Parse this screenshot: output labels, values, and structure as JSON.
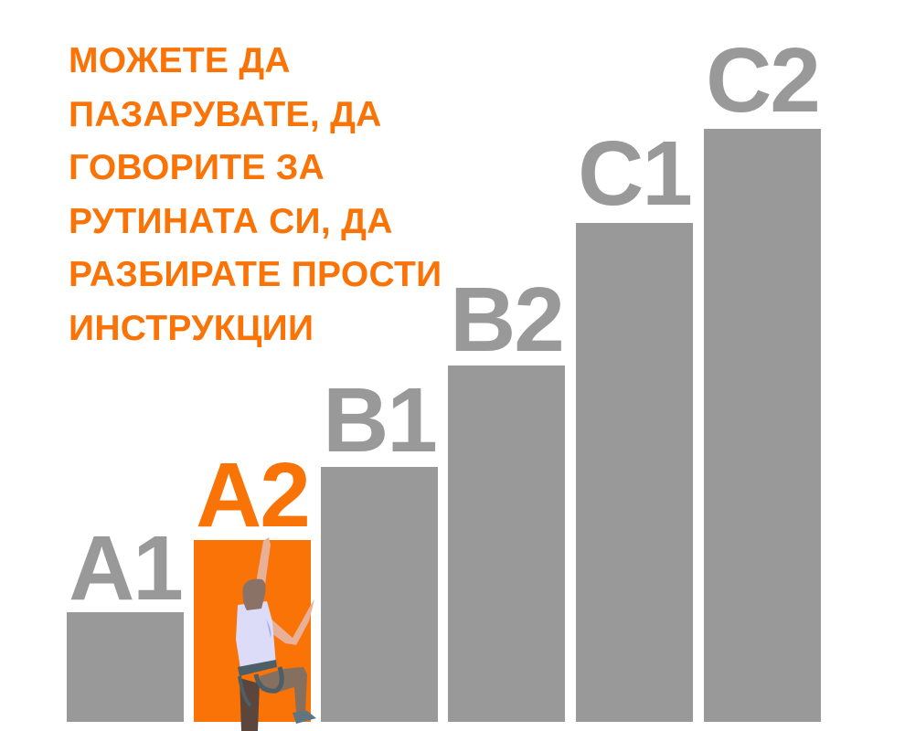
{
  "headline": {
    "lines": [
      "МОЖЕТЕ ДА",
      "ПАЗАРУВАТЕ, ДА",
      "ГОВОРИТЕ ЗА",
      "РУТИНАТА СИ, ДА",
      "РАЗБИРАТЕ ПРОСТИ",
      "ИНСТРУКЦИИ"
    ]
  },
  "levels": [
    {
      "label": "A1",
      "active": false
    },
    {
      "label": "A2",
      "active": true
    },
    {
      "label": "B1",
      "active": false
    },
    {
      "label": "B2",
      "active": false
    },
    {
      "label": "C1",
      "active": false
    },
    {
      "label": "C2",
      "active": false
    }
  ],
  "colors": {
    "accent": "#f97306",
    "bar": "#999999",
    "background": "#ffffff"
  },
  "illustration": "rock-climber"
}
